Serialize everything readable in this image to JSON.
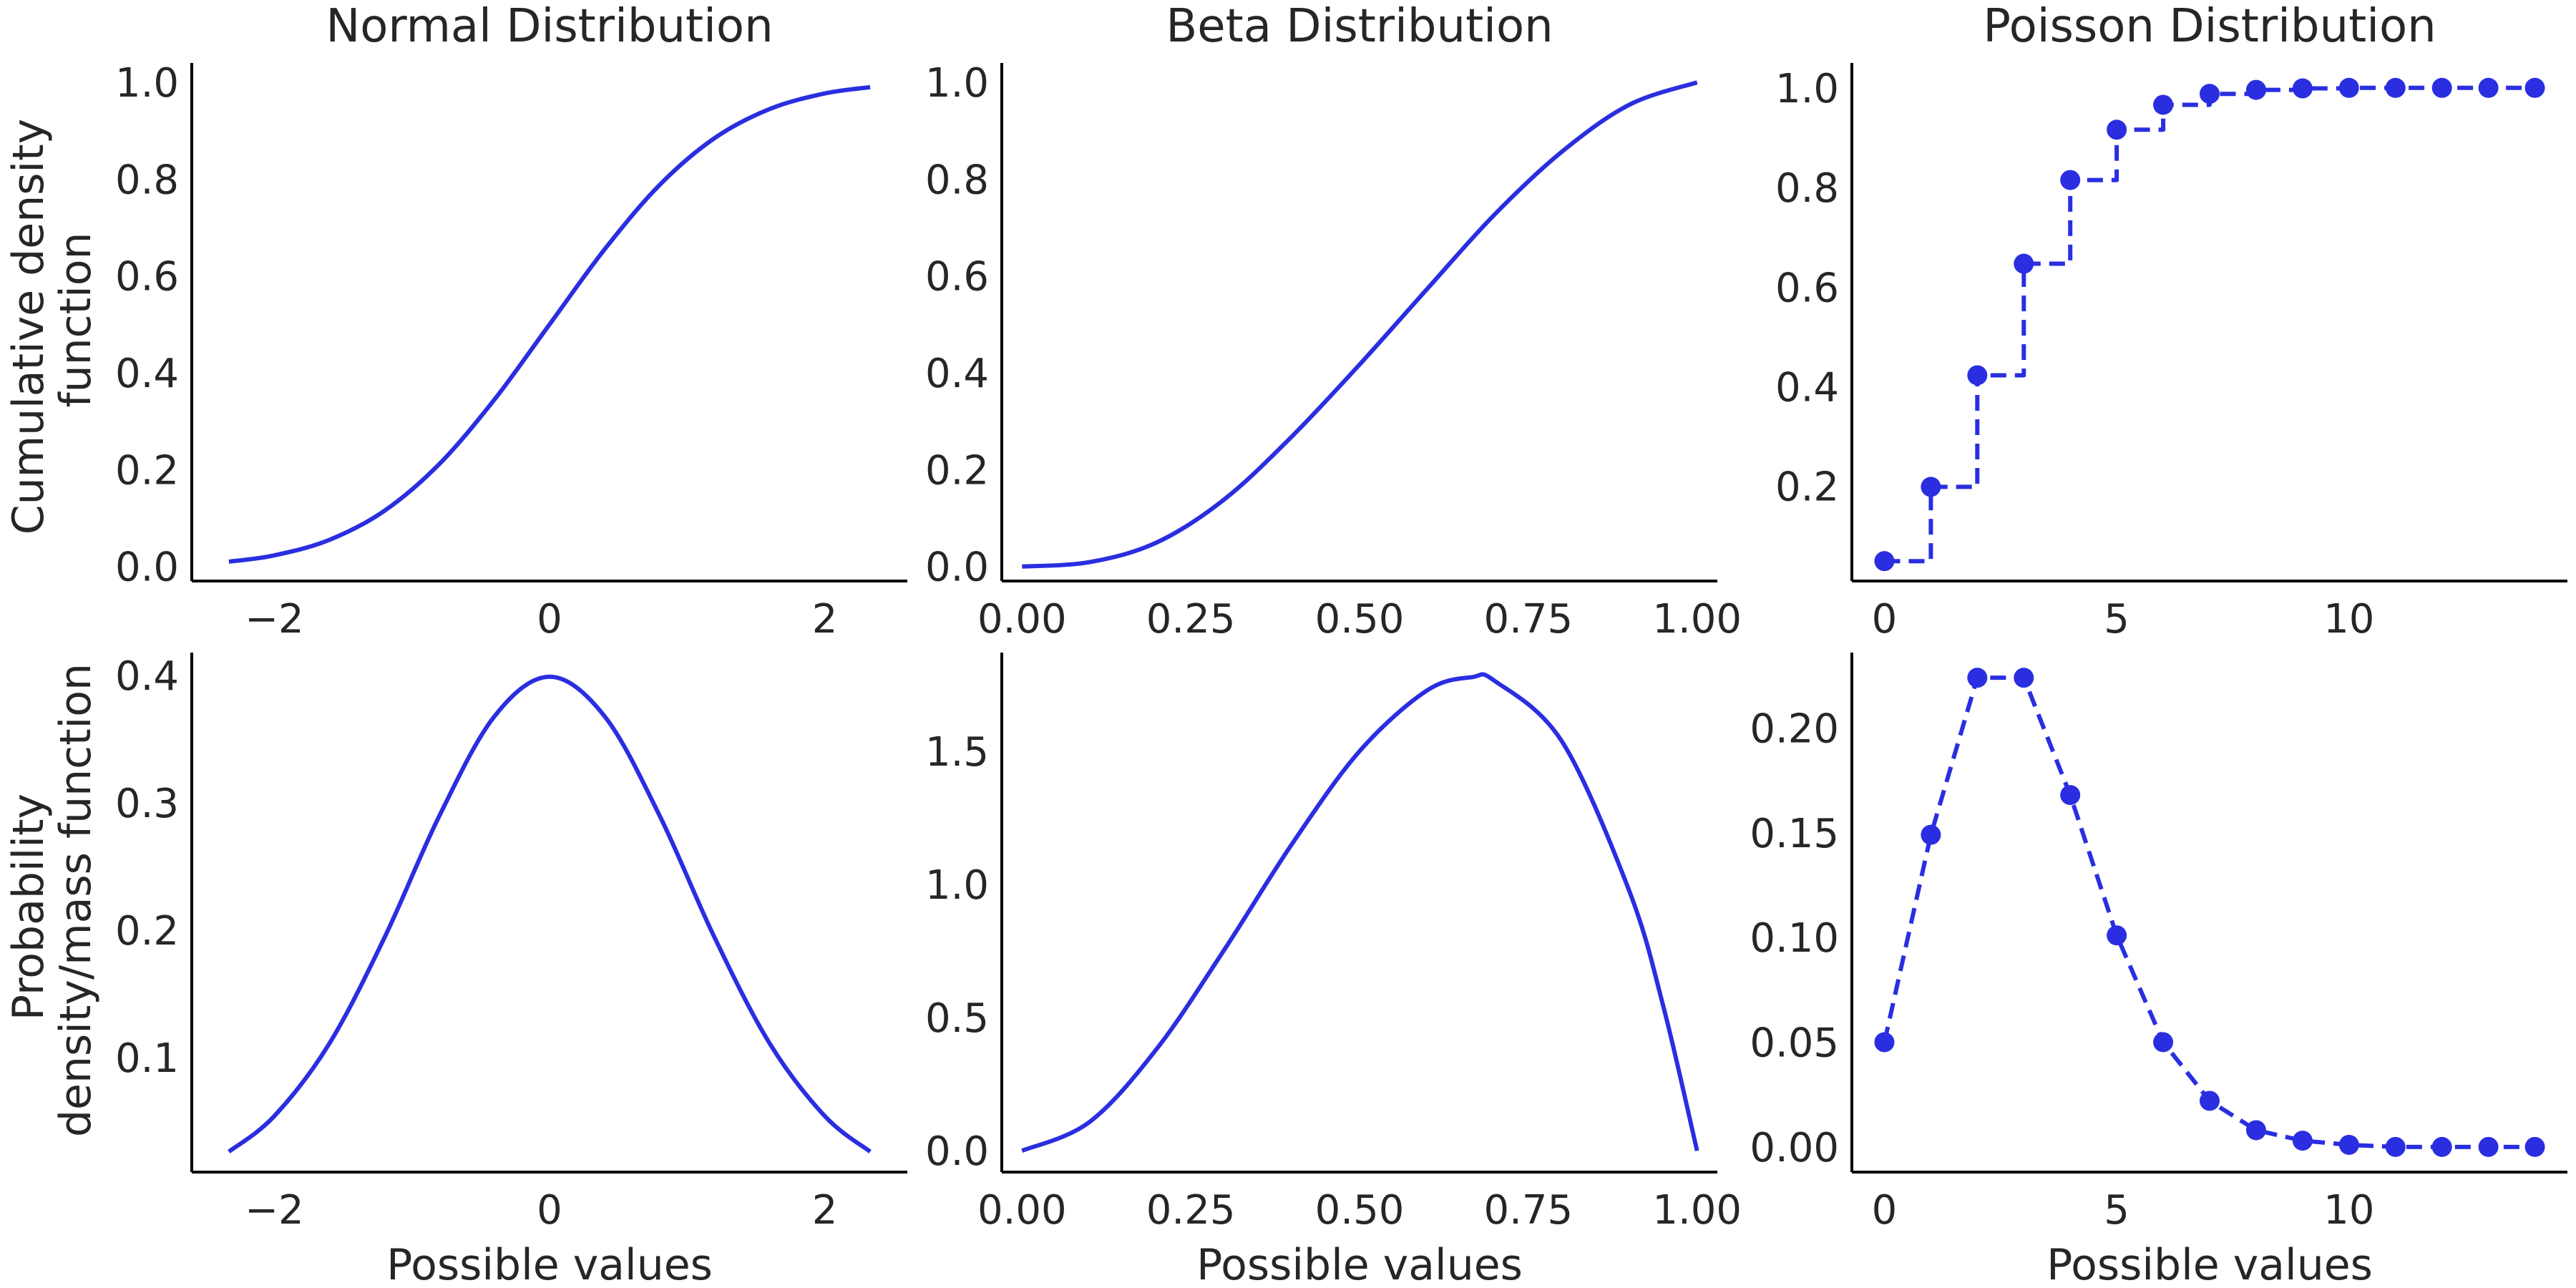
{
  "figure": {
    "line_color": "#2a2ee0",
    "ylabel_top": [
      "Cumulative density",
      "function"
    ],
    "ylabel_bottom": [
      "Probability",
      "density/mass function"
    ]
  },
  "chart_data": [
    {
      "id": "normal-cdf",
      "type": "line",
      "title": "Normal Distribution",
      "xlabel": "",
      "xlim": [
        -2.6,
        2.6
      ],
      "ylim": [
        -0.03,
        1.04
      ],
      "xticks": [
        -2,
        0,
        2
      ],
      "xtick_labels": [
        "−2",
        "0",
        "2"
      ],
      "yticks": [
        0.0,
        0.2,
        0.4,
        0.6,
        0.8,
        1.0
      ],
      "ytick_labels": [
        "0.0",
        "0.2",
        "0.4",
        "0.6",
        "0.8",
        "1.0"
      ],
      "line_style": "solid",
      "markers": false,
      "x": [
        -2.33,
        -2.0,
        -1.6,
        -1.2,
        -0.8,
        -0.4,
        0.0,
        0.4,
        0.8,
        1.2,
        1.6,
        2.0,
        2.33
      ],
      "y": [
        0.01,
        0.023,
        0.055,
        0.115,
        0.212,
        0.345,
        0.5,
        0.655,
        0.788,
        0.885,
        0.945,
        0.977,
        0.99
      ]
    },
    {
      "id": "beta-cdf",
      "type": "line",
      "title": "Beta Distribution",
      "xlabel": "",
      "xlim": [
        -0.03,
        1.03
      ],
      "ylim": [
        -0.03,
        1.04
      ],
      "xticks": [
        0.0,
        0.25,
        0.5,
        0.75,
        1.0
      ],
      "xtick_labels": [
        "0.00",
        "0.25",
        "0.50",
        "0.75",
        "1.00"
      ],
      "yticks": [
        0.0,
        0.2,
        0.4,
        0.6,
        0.8,
        1.0
      ],
      "ytick_labels": [
        "0.0",
        "0.2",
        "0.4",
        "0.6",
        "0.8",
        "1.0"
      ],
      "line_style": "solid",
      "markers": false,
      "x": [
        0.0,
        0.1,
        0.2,
        0.3,
        0.4,
        0.5,
        0.6,
        0.7,
        0.8,
        0.9,
        1.0
      ],
      "y": [
        0.0,
        0.009,
        0.05,
        0.139,
        0.269,
        0.417,
        0.573,
        0.727,
        0.857,
        0.954,
        1.0
      ]
    },
    {
      "id": "poisson-cdf",
      "type": "line",
      "title": "Poisson Distribution",
      "xlabel": "",
      "xlim": [
        -0.7,
        14.7
      ],
      "ylim": [
        0.01,
        1.05
      ],
      "xticks": [
        0,
        5,
        10
      ],
      "xtick_labels": [
        "0",
        "5",
        "10"
      ],
      "yticks": [
        0.2,
        0.4,
        0.6,
        0.8,
        1.0
      ],
      "ytick_labels": [
        "0.2",
        "0.4",
        "0.6",
        "0.8",
        "1.0"
      ],
      "line_style": "dashed-step",
      "markers": true,
      "x": [
        0,
        1,
        2,
        3,
        4,
        5,
        6,
        7,
        8,
        9,
        10,
        11,
        12,
        13,
        14
      ],
      "y": [
        0.05,
        0.199,
        0.423,
        0.647,
        0.815,
        0.916,
        0.966,
        0.988,
        0.996,
        0.999,
        1.0,
        1.0,
        1.0,
        1.0,
        1.0
      ]
    },
    {
      "id": "normal-pdf",
      "type": "line",
      "title": "",
      "xlabel": "Possible values",
      "xlim": [
        -2.6,
        2.6
      ],
      "ylim": [
        0.01,
        0.418
      ],
      "xticks": [
        -2,
        0,
        2
      ],
      "xtick_labels": [
        "−2",
        "0",
        "2"
      ],
      "yticks": [
        0.1,
        0.2,
        0.3,
        0.4
      ],
      "ytick_labels": [
        "0.1",
        "0.2",
        "0.3",
        "0.4"
      ],
      "line_style": "solid",
      "markers": false,
      "x": [
        -2.33,
        -2.0,
        -1.6,
        -1.2,
        -0.8,
        -0.4,
        0.0,
        0.4,
        0.8,
        1.2,
        1.6,
        2.0,
        2.33
      ],
      "y": [
        0.026,
        0.054,
        0.111,
        0.194,
        0.29,
        0.368,
        0.399,
        0.368,
        0.29,
        0.194,
        0.111,
        0.054,
        0.026
      ]
    },
    {
      "id": "beta-pdf",
      "type": "line",
      "title": "",
      "xlabel": "Possible values",
      "xlim": [
        -0.03,
        1.03
      ],
      "ylim": [
        -0.08,
        1.87
      ],
      "xticks": [
        0.0,
        0.25,
        0.5,
        0.75,
        1.0
      ],
      "xtick_labels": [
        "0.00",
        "0.25",
        "0.50",
        "0.75",
        "1.00"
      ],
      "yticks": [
        0.0,
        0.5,
        1.0,
        1.5
      ],
      "ytick_labels": [
        "0.0",
        "0.5",
        "1.0",
        "1.5"
      ],
      "line_style": "solid",
      "markers": false,
      "x": [
        0.0,
        0.1,
        0.2,
        0.3,
        0.4,
        0.5,
        0.6,
        0.667,
        0.7,
        0.8,
        0.9,
        0.95,
        1.0
      ],
      "y": [
        0.0,
        0.108,
        0.384,
        0.756,
        1.152,
        1.5,
        1.728,
        1.778,
        1.764,
        1.536,
        0.972,
        0.542,
        0.0
      ]
    },
    {
      "id": "poisson-pmf",
      "type": "line",
      "title": "",
      "xlabel": "Possible values",
      "xlim": [
        -0.7,
        14.7
      ],
      "ylim": [
        -0.012,
        0.236
      ],
      "xticks": [
        0,
        5,
        10
      ],
      "xtick_labels": [
        "0",
        "5",
        "10"
      ],
      "yticks": [
        0.0,
        0.05,
        0.1,
        0.15,
        0.2
      ],
      "ytick_labels": [
        "0.00",
        "0.05",
        "0.10",
        "0.15",
        "0.20"
      ],
      "line_style": "dashed",
      "markers": true,
      "x": [
        0,
        1,
        2,
        3,
        4,
        5,
        6,
        7,
        8,
        9,
        10,
        11,
        12,
        13,
        14
      ],
      "y": [
        0.05,
        0.149,
        0.224,
        0.224,
        0.168,
        0.101,
        0.05,
        0.022,
        0.008,
        0.003,
        0.001,
        0.0,
        0.0,
        0.0,
        0.0
      ]
    }
  ]
}
